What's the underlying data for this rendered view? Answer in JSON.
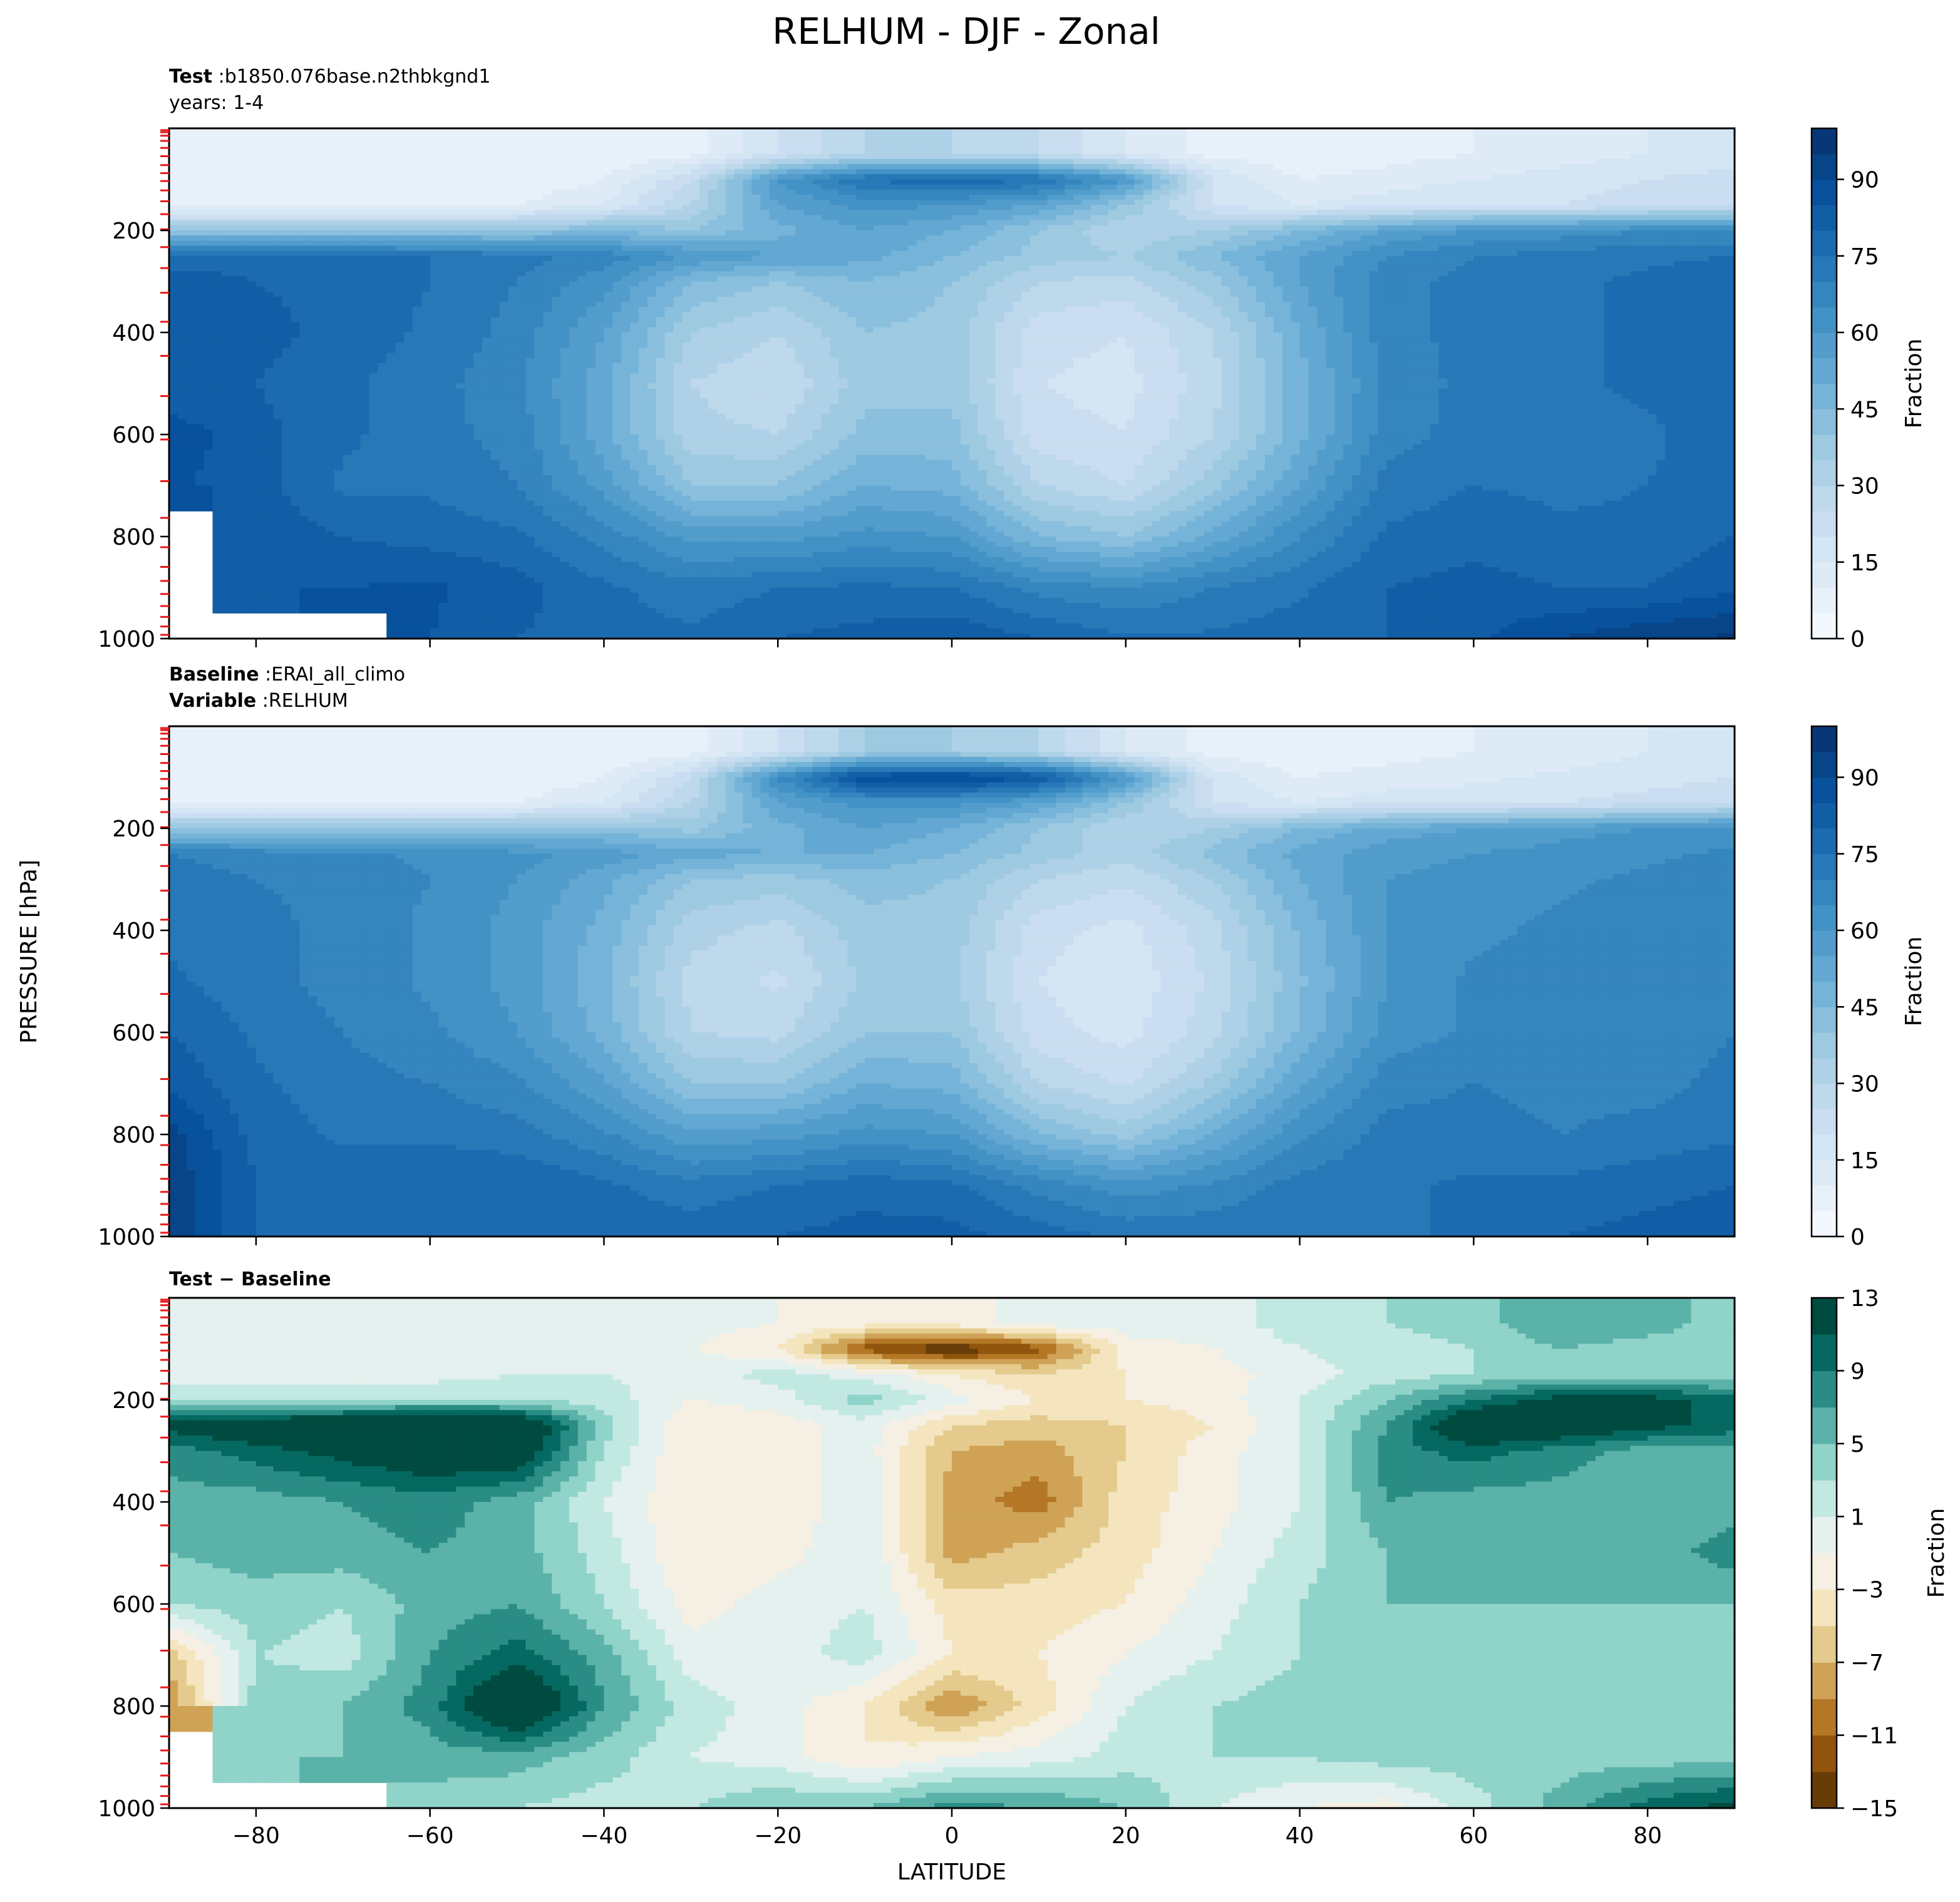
{
  "chart_data": {
    "type": "heatmap",
    "title": "RELHUM - DJF - Zonal",
    "ylabel": "PRESSURE [hPa]",
    "xlabel": "LATITUDE",
    "xlim": [
      -90,
      90
    ],
    "ylim": [
      1000,
      0
    ],
    "x_ticks": [
      -80,
      -60,
      -40,
      -20,
      0,
      20,
      40,
      60,
      80
    ],
    "x_tick_labels": [
      "−80",
      "−60",
      "−40",
      "−20",
      "0",
      "20",
      "40",
      "60",
      "80"
    ],
    "y_ticks": [
      200,
      400,
      600,
      800,
      1000
    ],
    "y_tick_labels": [
      "200",
      "400",
      "600",
      "800",
      "1000"
    ],
    "model_levels": [
      3.6,
      7.6,
      14.4,
      24.6,
      38.3,
      54.6,
      72.0,
      87.8,
      103.3,
      121.6,
      142.9,
      168.2,
      197.9,
      232.8,
      273.9,
      322.2,
      379.1,
      445.9,
      524.7,
      609.8,
      691.4,
      763.4,
      820.9,
      859.5,
      887.0,
      912.6,
      936.2,
      957.5,
      976.3,
      992.6
    ],
    "panels": [
      {
        "id": "test",
        "header": [
          {
            "bold": "Test",
            "sep": ":",
            "text": "b1850.076base.n2thbkgnd1"
          },
          {
            "bold": "",
            "sep": "",
            "text": "years: 1-4"
          }
        ],
        "colorbar": {
          "label": "Fraction",
          "ticks": [
            "0",
            "15",
            "30",
            "45",
            "60",
            "75",
            "90"
          ],
          "levels": [
            0,
            5,
            10,
            15,
            20,
            25,
            30,
            35,
            40,
            45,
            50,
            55,
            60,
            65,
            70,
            75,
            80,
            85,
            90,
            95,
            100
          ],
          "colormap": "Blues"
        },
        "field": {
          "lat": [
            -90,
            -80,
            -70,
            -60,
            -50,
            -40,
            -30,
            -20,
            -10,
            0,
            10,
            20,
            30,
            40,
            50,
            60,
            70,
            80,
            90
          ],
          "p": [
            50,
            100,
            150,
            200,
            250,
            300,
            400,
            500,
            600,
            700,
            800,
            900,
            1000
          ],
          "values": [
            [
              5,
              5,
              5,
              5,
              5,
              5,
              8,
              20,
              30,
              30,
              25,
              15,
              8,
              6,
              8,
              10,
              12,
              15,
              18
            ],
            [
              5,
              5,
              5,
              5,
              6,
              10,
              25,
              60,
              75,
              80,
              75,
              60,
              20,
              10,
              12,
              15,
              18,
              20,
              22
            ],
            [
              8,
              8,
              8,
              8,
              10,
              15,
              30,
              55,
              62,
              60,
              55,
              40,
              20,
              15,
              18,
              20,
              20,
              22,
              25
            ],
            [
              40,
              40,
              40,
              40,
              40,
              45,
              40,
              48,
              55,
              50,
              40,
              30,
              35,
              45,
              55,
              60,
              62,
              65,
              65
            ],
            [
              78,
              78,
              77,
              75,
              72,
              68,
              60,
              55,
              52,
              45,
              38,
              35,
              45,
              55,
              65,
              70,
              72,
              74,
              75
            ],
            [
              82,
              80,
              78,
              75,
              70,
              62,
              45,
              40,
              45,
              40,
              30,
              28,
              38,
              55,
              68,
              72,
              74,
              76,
              78
            ],
            [
              82,
              82,
              78,
              74,
              68,
              55,
              35,
              30,
              40,
              38,
              22,
              20,
              30,
              50,
              68,
              72,
              74,
              76,
              78
            ],
            [
              80,
              80,
              76,
              72,
              66,
              52,
              30,
              25,
              38,
              38,
              20,
              18,
              28,
              48,
              66,
              72,
              74,
              76,
              80
            ],
            [
              88,
              82,
              76,
              72,
              68,
              52,
              32,
              30,
              42,
              42,
              22,
              20,
              30,
              48,
              68,
              72,
              72,
              74,
              78
            ],
            [
              86,
              82,
              74,
              74,
              70,
              58,
              40,
              40,
              50,
              48,
              30,
              25,
              38,
              55,
              72,
              75,
              74,
              75,
              78
            ],
            [
              null,
              84,
              80,
              78,
              76,
              68,
              58,
              58,
              62,
              60,
              45,
              40,
              52,
              65,
              76,
              78,
              76,
              76,
              80
            ],
            [
              null,
              84,
              85,
              86,
              82,
              76,
              72,
              75,
              76,
              75,
              68,
              65,
              70,
              74,
              80,
              82,
              80,
              80,
              84
            ],
            [
              null,
              null,
              null,
              85,
              80,
              78,
              76,
              80,
              82,
              84,
              80,
              76,
              76,
              78,
              80,
              84,
              90,
              94,
              96
            ]
          ]
        }
      },
      {
        "id": "baseline",
        "header": [
          {
            "bold": "Baseline",
            "sep": ":",
            "text": "ERAI_all_climo"
          },
          {
            "bold": "Variable",
            "sep": ":",
            "text": "RELHUM"
          }
        ],
        "colorbar": {
          "label": "Fraction",
          "ticks": [
            "0",
            "15",
            "30",
            "45",
            "60",
            "75",
            "90"
          ],
          "levels": [
            0,
            5,
            10,
            15,
            20,
            25,
            30,
            35,
            40,
            45,
            50,
            55,
            60,
            65,
            70,
            75,
            80,
            85,
            90,
            95,
            100
          ],
          "colormap": "Blues"
        },
        "field": {
          "lat": [
            -90,
            -80,
            -70,
            -60,
            -50,
            -40,
            -30,
            -20,
            -10,
            0,
            10,
            20,
            30,
            40,
            50,
            60,
            70,
            80,
            90
          ],
          "p": [
            50,
            100,
            150,
            200,
            250,
            300,
            400,
            500,
            600,
            700,
            800,
            900,
            1000
          ],
          "values": [
            [
              5,
              5,
              5,
              5,
              5,
              5,
              8,
              20,
              35,
              35,
              30,
              15,
              8,
              6,
              8,
              10,
              12,
              15,
              18
            ],
            [
              5,
              5,
              5,
              5,
              6,
              10,
              25,
              65,
              90,
              92,
              85,
              60,
              18,
              10,
              12,
              14,
              16,
              18,
              20
            ],
            [
              8,
              8,
              8,
              8,
              10,
              15,
              30,
              55,
              62,
              62,
              55,
              40,
              20,
              15,
              18,
              18,
              20,
              22,
              24
            ],
            [
              40,
              40,
              40,
              40,
              40,
              42,
              38,
              48,
              55,
              50,
              40,
              30,
              35,
              45,
              52,
              55,
              58,
              60,
              62
            ],
            [
              70,
              68,
              66,
              64,
              62,
              58,
              52,
              50,
              50,
              45,
              38,
              32,
              42,
              52,
              58,
              60,
              62,
              64,
              66
            ],
            [
              72,
              70,
              68,
              65,
              60,
              52,
              40,
              38,
              42,
              40,
              30,
              26,
              35,
              50,
              60,
              62,
              64,
              66,
              68
            ],
            [
              74,
              72,
              68,
              64,
              58,
              48,
              32,
              28,
              38,
              38,
              22,
              18,
              28,
              46,
              60,
              64,
              66,
              68,
              70
            ],
            [
              76,
              72,
              68,
              64,
              58,
              46,
              28,
              24,
              36,
              36,
              20,
              16,
              26,
              44,
              60,
              66,
              66,
              68,
              70
            ],
            [
              80,
              74,
              70,
              66,
              60,
              48,
              30,
              28,
              40,
              40,
              22,
              18,
              28,
              46,
              62,
              66,
              66,
              66,
              70
            ],
            [
              84,
              76,
              72,
              70,
              66,
              56,
              40,
              40,
              50,
              48,
              30,
              24,
              36,
              54,
              68,
              70,
              68,
              68,
              72
            ],
            [
              92,
              78,
              74,
              74,
              72,
              66,
              56,
              58,
              62,
              60,
              45,
              38,
              50,
              64,
              72,
              72,
              70,
              72,
              74
            ],
            [
              94,
              80,
              78,
              80,
              80,
              76,
              72,
              75,
              78,
              76,
              68,
              62,
              66,
              72,
              74,
              76,
              76,
              78,
              80
            ],
            [
              94,
              80,
              76,
              76,
              78,
              78,
              78,
              80,
              82,
              82,
              78,
              74,
              74,
              74,
              74,
              76,
              80,
              82,
              84
            ]
          ]
        }
      },
      {
        "id": "difference",
        "header": [
          {
            "bold": "Test − Baseline",
            "sep": "",
            "text": ""
          }
        ],
        "colorbar": {
          "label": "Fraction",
          "ticks": [
            "13",
            "9",
            "5",
            "1",
            "−3",
            "−7",
            "−11",
            "−15"
          ],
          "levels": [
            -15,
            -13,
            -11,
            -9,
            -7,
            -5,
            -3,
            -1,
            1,
            3,
            5,
            7,
            9,
            11,
            13
          ],
          "colormap": "BrBG"
        },
        "field": {
          "lat": [
            -90,
            -80,
            -70,
            -60,
            -50,
            -40,
            -30,
            -20,
            -10,
            0,
            10,
            20,
            30,
            40,
            50,
            60,
            70,
            80,
            90
          ],
          "p": [
            50,
            100,
            150,
            200,
            250,
            300,
            400,
            500,
            600,
            700,
            800,
            900,
            1000
          ],
          "values": [
            [
              0,
              0,
              0,
              0,
              0,
              0,
              0,
              -1,
              -2,
              -2,
              0,
              0,
              0,
              2,
              3,
              4,
              7,
              6,
              4
            ],
            [
              0,
              0,
              0,
              0,
              0,
              0,
              -1,
              -3,
              -12,
              -15,
              -12,
              -2,
              -1,
              1,
              2,
              3,
              5,
              4,
              4
            ],
            [
              0,
              0,
              0,
              0,
              1,
              1,
              0,
              2,
              0,
              -3,
              -5,
              -3,
              -2,
              0,
              2,
              3,
              4,
              4,
              3
            ],
            [
              2,
              2,
              2,
              3,
              3,
              2,
              -1,
              0,
              4,
              0,
              -3,
              -3,
              -2,
              1,
              5,
              9,
              12,
              12,
              10
            ],
            [
              12,
              14,
              16,
              18,
              16,
              4,
              -3,
              -2,
              0,
              -5,
              -6,
              -5,
              -3,
              1,
              7,
              15,
              14,
              12,
              10
            ],
            [
              8,
              10,
              12,
              14,
              14,
              3,
              -3,
              -2,
              0,
              -7,
              -8,
              -5,
              -2,
              1,
              8,
              10,
              8,
              6,
              6
            ],
            [
              6,
              6,
              7,
              8,
              6,
              1,
              -3,
              -3,
              1,
              -8,
              -10,
              -4,
              -2,
              1,
              7,
              6,
              6,
              6,
              6
            ],
            [
              5,
              6,
              6,
              7,
              6,
              2,
              -3,
              -2,
              1,
              -8,
              -6,
              -4,
              -1,
              2,
              5,
              5,
              5,
              6,
              8
            ],
            [
              3,
              4,
              3,
              6,
              7,
              3,
              -2,
              0,
              1,
              -4,
              -4,
              -3,
              0,
              3,
              5,
              5,
              5,
              5,
              5
            ],
            [
              -6,
              3,
              2,
              7,
              10,
              6,
              0,
              0,
              2,
              -3,
              -3,
              -1,
              1,
              3,
              4,
              5,
              4,
              4,
              5
            ],
            [
              -9,
              4,
              5,
              8,
              16,
              7,
              2,
              0,
              -3,
              -9,
              -4,
              1,
              3,
              4,
              4,
              4,
              4,
              5,
              5
            ],
            [
              null,
              3,
              5,
              6,
              6,
              4,
              1,
              0,
              -3,
              -1,
              0,
              2,
              3,
              3,
              4,
              4,
              4,
              4,
              4
            ],
            [
              null,
              null,
              null,
              4,
              3,
              2,
              3,
              5,
              5,
              8,
              7,
              5,
              1,
              -1,
              -2,
              2,
              6,
              10,
              12
            ]
          ]
        }
      }
    ]
  }
}
